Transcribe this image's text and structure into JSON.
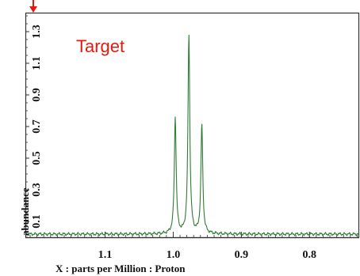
{
  "chart_data": {
    "type": "line",
    "title": "",
    "xlabel": "X : parts per Million : Proton",
    "ylabel": "abundance",
    "x_reversed": true,
    "xlim": [
      1.217,
      0.727
    ],
    "ylim": [
      0,
      1.42
    ],
    "x_ticks": [
      1.1,
      1.0,
      0.9,
      0.8
    ],
    "x_tick_labels": [
      "1.1",
      "1.0",
      "0.9",
      "0.8"
    ],
    "y_ticks": [
      0.1,
      0.3,
      0.5,
      0.7,
      0.9,
      1.1,
      1.3
    ],
    "y_tick_labels": [
      "0.1",
      "0.3",
      "0.5",
      "0.7",
      "0.9",
      "1.1",
      "1.3"
    ],
    "grid": false,
    "line_color": "#2e7d32",
    "series": [
      {
        "peaks": [
          {
            "x": 0.997,
            "height": 0.76
          },
          {
            "x": 0.977,
            "height": 1.28
          },
          {
            "x": 0.958,
            "height": 0.71
          }
        ],
        "baseline": 0.02
      }
    ],
    "annotations": [
      {
        "text": "Target",
        "color": "#e8180c",
        "arrow": "down"
      }
    ]
  }
}
